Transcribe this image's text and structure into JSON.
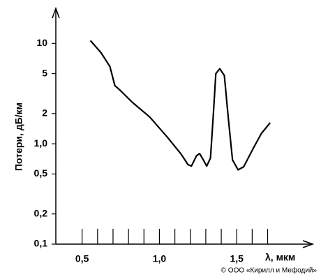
{
  "chart_data": {
    "type": "line",
    "ylabel": "Потери, дБ/км",
    "xlabel": "λ, мкм",
    "credit": "© ООО «Кирилл и Мефодий»",
    "y_scale": "log",
    "color": "#000000",
    "xlim": [
      0.33,
      2.0
    ],
    "ylim": [
      0.1,
      20
    ],
    "xticks": [
      {
        "value": 0.5,
        "label": "0,5"
      },
      {
        "value": 1.0,
        "label": "1,0"
      },
      {
        "value": 1.5,
        "label": "1,5"
      }
    ],
    "xminor_ticks": [
      0.6,
      0.7,
      0.8,
      0.9,
      1.1,
      1.2,
      1.3,
      1.4,
      1.6,
      1.7
    ],
    "yticks": [
      {
        "value": 0.1,
        "label": "0,1"
      },
      {
        "value": 0.2,
        "label": "0,2"
      },
      {
        "value": 0.5,
        "label": "0,5"
      },
      {
        "value": 1.0,
        "label": "1,0"
      },
      2,
      5,
      10
    ],
    "x": [
      0.554,
      0.622,
      0.68,
      0.712,
      0.743,
      0.824,
      0.937,
      1.05,
      1.14,
      1.185,
      1.207,
      1.24,
      1.26,
      1.284,
      1.306,
      1.33,
      1.347,
      1.365,
      1.39,
      1.42,
      1.446,
      1.473,
      1.509,
      1.545,
      1.61,
      1.66,
      1.716
    ],
    "values": [
      10.7,
      8.1,
      5.9,
      3.8,
      3.45,
      2.6,
      1.85,
      1.17,
      0.79,
      0.62,
      0.6,
      0.76,
      0.8,
      0.69,
      0.6,
      0.72,
      1.76,
      5.0,
      5.6,
      4.8,
      1.76,
      0.69,
      0.55,
      0.59,
      0.92,
      1.27,
      1.62
    ]
  }
}
